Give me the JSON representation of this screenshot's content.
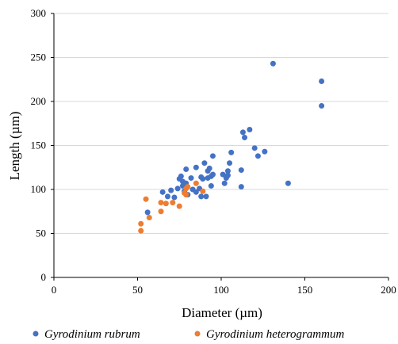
{
  "chart_data": {
    "type": "scatter",
    "xlabel": "Diameter (µm)",
    "ylabel": "Length (µm)",
    "xlim": [
      0,
      200
    ],
    "ylim": [
      0,
      300
    ],
    "xticks": [
      "0",
      "50",
      "100",
      "150",
      "200"
    ],
    "yticks": [
      "0",
      "50",
      "100",
      "150",
      "200",
      "250",
      "300"
    ],
    "grid": "horizontal",
    "legend_position": "bottom",
    "series": [
      {
        "name": "Gyrodinium rubrum",
        "color": "#4472c4",
        "points": [
          [
            56,
            74
          ],
          [
            65,
            97
          ],
          [
            68,
            92
          ],
          [
            70,
            99
          ],
          [
            72,
            91
          ],
          [
            74,
            101
          ],
          [
            75,
            112
          ],
          [
            76,
            115
          ],
          [
            77,
            104
          ],
          [
            77,
            109
          ],
          [
            78,
            98
          ],
          [
            79,
            123
          ],
          [
            79,
            107
          ],
          [
            80,
            94
          ],
          [
            82,
            113
          ],
          [
            83,
            100
          ],
          [
            85,
            97
          ],
          [
            85,
            125
          ],
          [
            87,
            101
          ],
          [
            88,
            92
          ],
          [
            88,
            114
          ],
          [
            89,
            112
          ],
          [
            90,
            130
          ],
          [
            91,
            92
          ],
          [
            92,
            113
          ],
          [
            92,
            121
          ],
          [
            93,
            124
          ],
          [
            94,
            104
          ],
          [
            94,
            115
          ],
          [
            95,
            117
          ],
          [
            95,
            138
          ],
          [
            101,
            117
          ],
          [
            102,
            107
          ],
          [
            103,
            113
          ],
          [
            104,
            116
          ],
          [
            104,
            121
          ],
          [
            105,
            130
          ],
          [
            106,
            142
          ],
          [
            112,
            103
          ],
          [
            112,
            122
          ],
          [
            113,
            165
          ],
          [
            114,
            159
          ],
          [
            117,
            168
          ],
          [
            120,
            147
          ],
          [
            122,
            138
          ],
          [
            126,
            143
          ],
          [
            131,
            243
          ],
          [
            140,
            107
          ],
          [
            160,
            223
          ],
          [
            160,
            195
          ]
        ]
      },
      {
        "name": "Gyrodinium heterogrammum",
        "color": "#ed7d31",
        "points": [
          [
            52,
            53
          ],
          [
            52,
            61
          ],
          [
            55,
            89
          ],
          [
            57,
            68
          ],
          [
            64,
            75
          ],
          [
            64,
            85
          ],
          [
            67,
            84
          ],
          [
            71,
            85
          ],
          [
            75,
            81
          ],
          [
            78,
            96
          ],
          [
            79,
            94
          ],
          [
            79,
            101
          ],
          [
            80,
            103
          ],
          [
            85,
            107
          ],
          [
            89,
            98
          ]
        ]
      }
    ]
  }
}
